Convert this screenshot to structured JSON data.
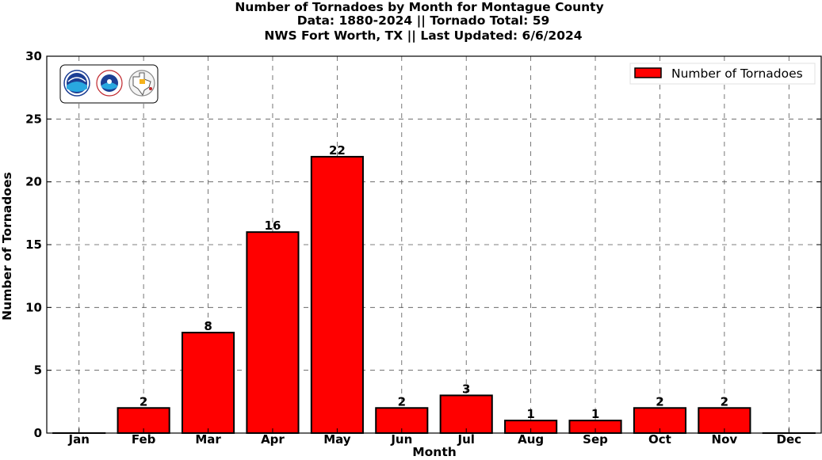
{
  "chart_data": {
    "type": "bar",
    "title": "Number of Tornadoes by Month for Montague County",
    "subtitle_lines": [
      "Data: 1880-2024 || Tornado Total: 59",
      "NWS Fort Worth, TX || Last Updated: 6/6/2024"
    ],
    "xlabel": "Month",
    "ylabel": "Number of Tornadoes",
    "categories": [
      "Jan",
      "Feb",
      "Mar",
      "Apr",
      "May",
      "Jun",
      "Jul",
      "Aug",
      "Sep",
      "Oct",
      "Nov",
      "Dec"
    ],
    "series": [
      {
        "name": "Number of Tornadoes",
        "values": [
          0,
          2,
          8,
          16,
          22,
          2,
          3,
          1,
          1,
          2,
          2,
          0
        ],
        "color": "#ff0000"
      }
    ],
    "data_labels": [
      "",
      "2",
      "8",
      "16",
      "22",
      "2",
      "3",
      "1",
      "1",
      "2",
      "2",
      ""
    ],
    "ylim": [
      0,
      30
    ],
    "yticks": [
      "0",
      "5",
      "10",
      "15",
      "20",
      "25",
      "30"
    ],
    "grid": true,
    "legend_position": "top-right",
    "logos": [
      "noaa-logo",
      "nws-logo",
      "texas-logo"
    ]
  }
}
